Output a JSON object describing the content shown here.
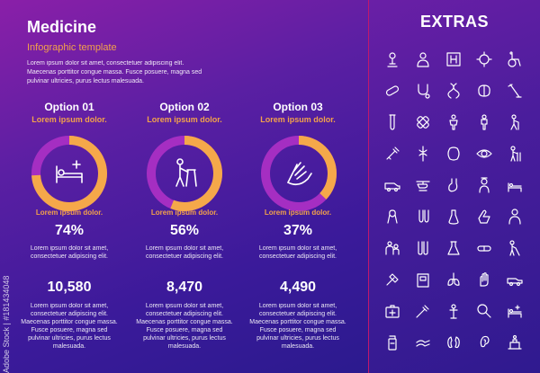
{
  "header": {
    "title": "Medicine",
    "subtitle": "Infographic template",
    "intro": "Lorem ipsum dolor sit amet, consectetuer adipiscing elit. Maecenas porttitor congue massa. Fusce posuere, magna sed pulvinar ultricies, purus lectus malesuada."
  },
  "colors": {
    "accent": "#f3a24a",
    "ring_track": "#a52ec2",
    "ring_fill": "#f5a84a",
    "divider": "#c0186c"
  },
  "options": [
    {
      "name": "Option 01",
      "byline": "Lorem ipsum dolor.",
      "icon": "hospital-bed-icon",
      "ring_label": "Lorem ipsum dolor.",
      "percent_text": "74%",
      "percent": 74,
      "desc1": "Lorem ipsum dolor sit amet, consectetuer adipiscing elit.",
      "number": "10,580",
      "desc2": "Lorem ipsum dolor sit amet, consectetuer adipiscing elit. Maecenas porttitor congue massa. Fusce posuere, magna sed pulvinar ultricies, purus lectus malesuada."
    },
    {
      "name": "Option 02",
      "byline": "Lorem ipsum dolor.",
      "icon": "walker-icon",
      "ring_label": "Lorem ipsum dolor.",
      "percent_text": "56%",
      "percent": 56,
      "desc1": "Lorem ipsum dolor sit amet, consectetuer adipiscing elit.",
      "number": "8,470",
      "desc2": "Lorem ipsum dolor sit amet, consectetuer adipiscing elit. Maecenas porttitor congue massa. Fusce posuere, magna sed pulvinar ultricies, purus lectus malesuada."
    },
    {
      "name": "Option 03",
      "byline": "Lorem ipsum dolor.",
      "icon": "helping-hand-icon",
      "ring_label": "Lorem ipsum dolor.",
      "percent_text": "37%",
      "percent": 37,
      "desc1": "Lorem ipsum dolor sit amet, consectetuer adipiscing elit.",
      "number": "4,490",
      "desc2": "Lorem ipsum dolor sit amet, consectetuer adipiscing elit. Maecenas porttitor congue massa. Fusce posuere, magna sed pulvinar ultricies, purus lectus malesuada."
    }
  ],
  "extras": {
    "title": "EXTRAS",
    "icons": [
      "microscope-icon",
      "doctor-icon",
      "hospital-icon",
      "virus-icon",
      "wheelchair-icon",
      "pill-icon",
      "stethoscope-icon",
      "dna-icon",
      "brain-icon",
      "crutch-icon",
      "test-tube-icon",
      "bandage-icon",
      "body-icon",
      "person-icon",
      "cane-person-icon",
      "syringe-icon",
      "caduceus-icon",
      "organ-icon",
      "eye-icon",
      "walker-icon",
      "ambulance-icon",
      "helicopter-icon",
      "stomach-icon",
      "nurse-icon",
      "hospital-bed-icon",
      "ribbon-icon",
      "flask-icon",
      "dropper-icon",
      "care-hand-icon",
      "patient-icon",
      "medical-staff-icon",
      "vials-icon",
      "lab-flask-icon",
      "pills-icon",
      "blind-cane-icon",
      "axe-icon",
      "scale-icon",
      "lungs-icon",
      "hand-icon",
      "ambulance-car-icon",
      "first-aid-kit-icon",
      "pipette-icon",
      "body-scan-icon",
      "magnifier-icon",
      "bed-icon",
      "medicine-bottle-icon",
      "caring-hands-icon",
      "kidney-icon",
      "ear-icon",
      "patient-care-icon"
    ]
  },
  "credit": "Adobe Stock | #181434048"
}
